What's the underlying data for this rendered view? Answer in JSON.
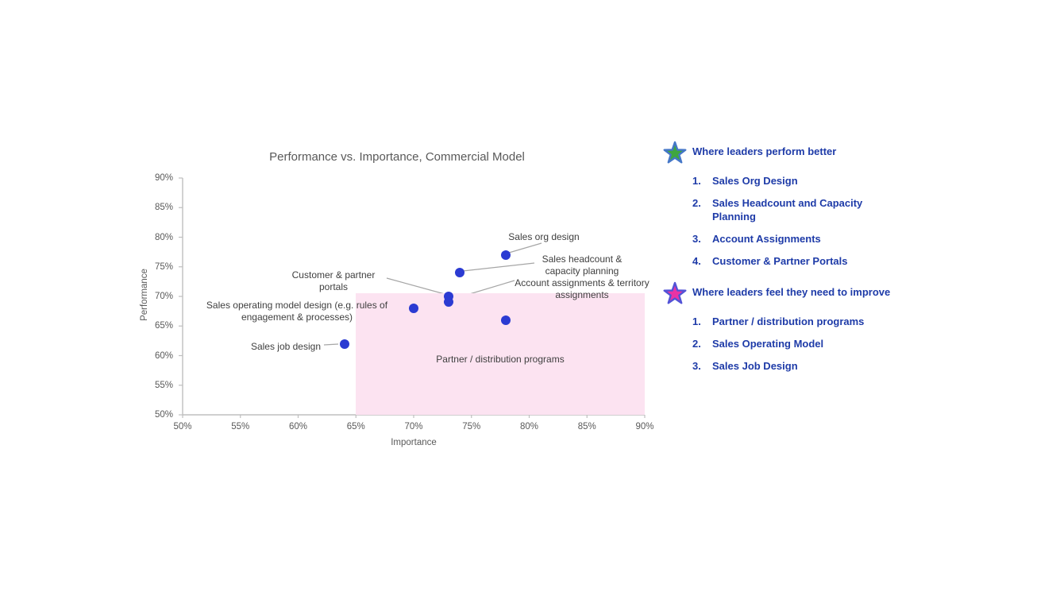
{
  "chart_data": {
    "type": "scatter",
    "title": "Performance vs. Importance, Commercial Model",
    "xlabel": "Importance",
    "ylabel": "Performance",
    "xlim": [
      50,
      90
    ],
    "ylim": [
      50,
      90
    ],
    "tick_step": 5,
    "x_ticks": [
      "50%",
      "55%",
      "60%",
      "65%",
      "70%",
      "75%",
      "80%",
      "85%",
      "90%"
    ],
    "y_ticks": [
      "50%",
      "55%",
      "60%",
      "65%",
      "70%",
      "75%",
      "80%",
      "85%",
      "90%"
    ],
    "grid": false,
    "legend_position": "none",
    "point_color": "#2B3BD2",
    "highlight_region": {
      "x0": 65,
      "x1": 90,
      "y0": 50,
      "y1": 70.5,
      "color": "#FCE3F1"
    },
    "points": [
      {
        "key": "sales-org-design",
        "label": "Sales org design",
        "x": 78,
        "y": 77
      },
      {
        "key": "sales-headcount",
        "label": "Sales headcount & capacity planning",
        "x": 74,
        "y": 74
      },
      {
        "key": "customer-partner-portals",
        "label": "Customer & partner portals",
        "x": 73,
        "y": 70
      },
      {
        "key": "account-assignments",
        "label": "Account assignments & territory assignments",
        "x": 73,
        "y": 69
      },
      {
        "key": "sales-operating-model",
        "label": "Sales operating model design (e.g. rules of engagement & processes)",
        "x": 70,
        "y": 68
      },
      {
        "key": "partner-distribution",
        "label": "Partner / distribution programs",
        "x": 78,
        "y": 66
      },
      {
        "key": "sales-job-design",
        "label": "Sales job design",
        "x": 64,
        "y": 62
      }
    ]
  },
  "side_panels": [
    {
      "star_fill": "#3FA63F",
      "star_stroke": "#4577C8",
      "heading": "Where leaders perform better",
      "items": [
        {
          "num": "1.",
          "text": "Sales Org Design"
        },
        {
          "num": "2.",
          "text": "Sales Headcount and Capacity Planning"
        },
        {
          "num": "3.",
          "text": "Account Assignments"
        },
        {
          "num": "4.",
          "text": "Customer & Partner Portals"
        }
      ]
    },
    {
      "star_fill": "#EA33A4",
      "star_stroke": "#5253D7",
      "heading": "Where leaders feel they need to improve",
      "items": [
        {
          "num": "1.",
          "text": "Partner / distribution programs"
        },
        {
          "num": "2.",
          "text": "Sales Operating Model"
        },
        {
          "num": "3.",
          "text": "Sales Job Design"
        }
      ]
    }
  ],
  "colors": {
    "accent_text": "#1E3BA8",
    "title_text": "#595959",
    "annotation_text": "#3F3F3F",
    "axis_line": "#BFBFBF",
    "leader_line": "#A6A6A6"
  }
}
